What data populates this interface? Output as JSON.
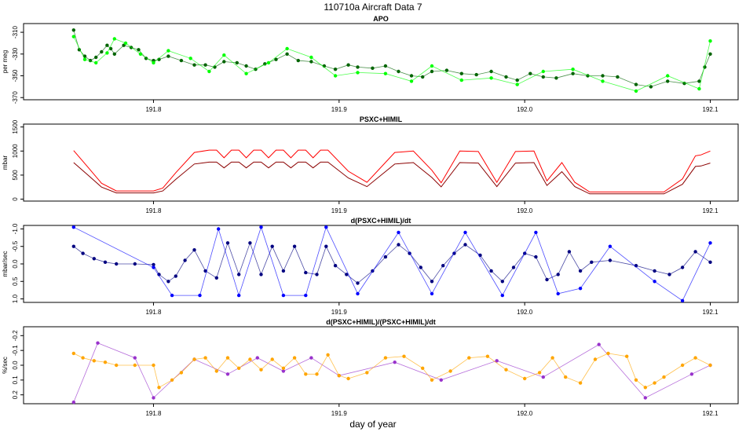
{
  "figure": {
    "title": "110710a   Aircraft Data 7",
    "xlabel": "day of year"
  },
  "colors": {
    "apo_dark": "#006400",
    "apo_light": "#00ff00",
    "pressure_upper": "#ff0000",
    "pressure_lower": "#8b0000",
    "deriv_dark": "#000080",
    "deriv_light": "#0000ff",
    "rel_primary": "#ffa500",
    "rel_secondary": "#9932cc"
  },
  "chart_data": [
    {
      "type": "scatter",
      "title": "APO",
      "ylabel": "per meg",
      "xlim": [
        191.73,
        192.115
      ],
      "ylim": [
        -372,
        -302
      ],
      "yticks": [
        -310,
        -330,
        -350,
        -370
      ],
      "ytick_labels": [
        "-310",
        "-330",
        "-350",
        "-370"
      ],
      "xticks": [
        191.8,
        191.9,
        192.0,
        192.1
      ],
      "xtick_labels": [
        "191.8",
        "191.9",
        "192.0",
        "192.1"
      ],
      "grid": false,
      "series": [
        {
          "color": "apo_dark",
          "x": [
            191.757,
            191.76,
            191.763,
            191.766,
            191.769,
            191.772,
            191.775,
            191.777,
            191.779,
            191.784,
            191.788,
            191.792,
            191.796,
            191.8,
            191.803,
            191.808,
            191.815,
            191.822,
            191.828,
            191.833,
            191.838,
            191.845,
            191.85,
            191.855,
            191.86,
            191.866,
            191.872,
            191.878,
            191.885,
            191.892,
            191.898,
            191.905,
            191.91,
            191.918,
            191.925,
            191.932,
            191.939,
            191.945,
            191.95,
            191.958,
            191.966,
            191.974,
            191.982,
            191.99,
            191.996,
            192.003,
            192.01,
            192.017,
            192.026,
            192.034,
            192.042,
            192.05,
            192.06,
            192.068,
            192.077,
            192.086,
            192.094,
            192.097,
            192.1
          ],
          "y": [
            -308,
            -326,
            -332,
            -336,
            -333,
            -328,
            -322,
            -325,
            -330,
            -322,
            -324,
            -326,
            -334,
            -336,
            -335,
            -332,
            -336,
            -340,
            -340,
            -342,
            -337,
            -338,
            -341,
            -344,
            -339,
            -335,
            -330,
            -336,
            -337,
            -341,
            -344,
            -340,
            -342,
            -343,
            -341,
            -346,
            -350,
            -351,
            -346,
            -345,
            -348,
            -349,
            -346,
            -351,
            -354,
            -348,
            -351,
            -352,
            -348,
            -350,
            -350,
            -351,
            -358,
            -360,
            -355,
            -357,
            -355,
            -342,
            -330
          ]
        },
        {
          "color": "apo_light",
          "x": [
            191.757,
            191.763,
            191.769,
            191.775,
            191.779,
            191.785,
            191.793,
            191.8,
            191.808,
            191.82,
            191.83,
            191.838,
            191.85,
            191.862,
            191.872,
            191.885,
            191.898,
            191.91,
            191.925,
            191.939,
            191.95,
            191.966,
            191.982,
            191.996,
            192.01,
            192.026,
            192.042,
            192.06,
            192.077,
            192.094,
            192.1
          ],
          "y": [
            -314,
            -335,
            -338,
            -329,
            -316,
            -320,
            -330,
            -338,
            -327,
            -334,
            -346,
            -331,
            -348,
            -338,
            -325,
            -333,
            -350,
            -347,
            -348,
            -355,
            -341,
            -354,
            -352,
            -358,
            -346,
            -344,
            -355,
            -364,
            -350,
            -362,
            -318
          ]
        }
      ]
    },
    {
      "type": "line",
      "title": "PSXC+HIMIL",
      "ylabel": "mbar",
      "xlim": [
        191.73,
        192.115
      ],
      "ylim": [
        -40,
        1560
      ],
      "yticks": [
        0,
        500,
        1000,
        1500
      ],
      "ytick_labels": [
        "0",
        "500",
        "1000",
        "1500"
      ],
      "xticks": [
        191.8,
        191.9,
        192.0,
        192.1
      ],
      "xtick_labels": [
        "191.8",
        "191.9",
        "192.0",
        "192.1"
      ],
      "grid": false,
      "series": [
        {
          "color": "pressure_upper",
          "x": [
            191.757,
            191.765,
            191.772,
            191.78,
            191.8,
            191.805,
            191.812,
            191.822,
            191.83,
            191.834,
            191.838,
            191.842,
            191.846,
            191.85,
            191.854,
            191.858,
            191.862,
            191.866,
            191.87,
            191.874,
            191.878,
            191.882,
            191.886,
            191.89,
            191.894,
            191.905,
            191.915,
            191.93,
            191.94,
            191.95,
            191.955,
            191.965,
            191.975,
            191.985,
            191.995,
            192.005,
            192.012,
            192.02,
            192.027,
            192.035,
            192.045,
            192.075,
            192.085,
            192.092,
            192.095,
            192.1
          ],
          "y": [
            1010,
            650,
            330,
            170,
            170,
            230,
            550,
            970,
            1020,
            1020,
            860,
            1020,
            1020,
            860,
            1020,
            1020,
            860,
            1020,
            1020,
            860,
            1020,
            1020,
            860,
            1020,
            1020,
            580,
            350,
            970,
            1000,
            600,
            340,
            1000,
            990,
            350,
            990,
            1000,
            380,
            760,
            350,
            150,
            150,
            150,
            420,
            900,
            920,
            1000
          ]
        },
        {
          "color": "pressure_lower",
          "x": [
            191.757,
            191.765,
            191.772,
            191.78,
            191.8,
            191.805,
            191.812,
            191.822,
            191.83,
            191.834,
            191.838,
            191.842,
            191.846,
            191.85,
            191.854,
            191.858,
            191.862,
            191.866,
            191.87,
            191.874,
            191.878,
            191.882,
            191.886,
            191.89,
            191.894,
            191.905,
            191.915,
            191.93,
            191.94,
            191.95,
            191.955,
            191.965,
            191.975,
            191.985,
            191.995,
            192.005,
            192.012,
            192.02,
            192.027,
            192.035,
            192.045,
            192.075,
            192.085,
            192.092,
            192.095,
            192.1
          ],
          "y": [
            760,
            490,
            250,
            130,
            130,
            170,
            410,
            730,
            770,
            770,
            650,
            770,
            770,
            650,
            770,
            770,
            650,
            770,
            770,
            650,
            770,
            770,
            650,
            770,
            770,
            440,
            260,
            730,
            760,
            450,
            255,
            760,
            750,
            260,
            750,
            760,
            285,
            570,
            260,
            110,
            110,
            110,
            310,
            680,
            690,
            750
          ]
        }
      ]
    },
    {
      "type": "scatter",
      "title": "d(PSXC+HIMIL)/dt",
      "ylabel": "mbar/sec",
      "xlim": [
        191.73,
        192.115
      ],
      "ylim": [
        1.1,
        -1.1
      ],
      "yticks": [
        -1.0,
        -0.5,
        0.0,
        0.5,
        1.0
      ],
      "ytick_labels": [
        "-1.0",
        "-0.5",
        "0.0",
        "0.5",
        "1.0"
      ],
      "xticks": [
        191.8,
        191.9,
        192.0,
        192.1
      ],
      "xtick_labels": [
        "191.8",
        "191.9",
        "192.0",
        "192.1"
      ],
      "grid": false,
      "series": [
        {
          "color": "deriv_dark",
          "x": [
            191.757,
            191.762,
            191.768,
            191.774,
            191.78,
            191.79,
            191.8,
            191.803,
            191.808,
            191.812,
            191.817,
            191.822,
            191.828,
            191.834,
            191.84,
            191.846,
            191.852,
            191.858,
            191.864,
            191.87,
            191.876,
            191.882,
            191.888,
            191.893,
            191.898,
            191.904,
            191.91,
            191.918,
            191.925,
            191.932,
            191.938,
            191.944,
            191.95,
            191.956,
            191.962,
            191.968,
            191.976,
            191.982,
            191.988,
            191.994,
            192.0,
            192.006,
            192.012,
            192.018,
            192.024,
            192.03,
            192.036,
            192.046,
            192.06,
            192.07,
            192.078,
            192.085,
            192.092,
            192.1
          ],
          "y": [
            -0.5,
            -0.3,
            -0.15,
            -0.05,
            0.0,
            0.0,
            0.02,
            0.3,
            0.5,
            0.35,
            -0.1,
            -0.4,
            0.2,
            0.4,
            -0.6,
            0.3,
            -0.6,
            0.3,
            -0.5,
            0.2,
            -0.5,
            0.25,
            0.3,
            -0.5,
            0.05,
            0.3,
            0.55,
            0.2,
            -0.2,
            -0.55,
            -0.3,
            0.1,
            0.5,
            0.05,
            -0.3,
            -0.55,
            -0.25,
            0.2,
            0.5,
            0.1,
            -0.3,
            -0.2,
            0.45,
            0.3,
            -0.35,
            0.2,
            -0.05,
            -0.1,
            0.05,
            0.2,
            0.3,
            0.1,
            -0.35,
            -0.05
          ]
        },
        {
          "color": "deriv_light",
          "x": [
            191.757,
            191.8,
            191.81,
            191.825,
            191.835,
            191.846,
            191.858,
            191.87,
            191.882,
            191.893,
            191.91,
            191.932,
            191.95,
            191.968,
            191.988,
            192.006,
            192.018,
            192.03,
            192.046,
            192.07,
            192.085,
            192.1
          ],
          "y": [
            -1.05,
            0.1,
            0.9,
            0.9,
            -1.0,
            0.9,
            -1.05,
            0.9,
            0.9,
            -1.05,
            0.85,
            -0.9,
            0.85,
            -0.9,
            0.9,
            -0.9,
            0.85,
            0.7,
            -0.5,
            0.5,
            1.05,
            -0.6
          ]
        }
      ]
    },
    {
      "type": "scatter",
      "title": "d(PSXC+HIMIL)/(PSXC+HIMIL)/dt",
      "ylabel": "%/sec",
      "xlim": [
        191.73,
        192.115
      ],
      "ylim": [
        0.26,
        -0.26
      ],
      "yticks": [
        -0.2,
        -0.1,
        0.0,
        0.1,
        0.2
      ],
      "ytick_labels": [
        "-0.2",
        "-0.1",
        "0.0",
        "0.1",
        "0.2"
      ],
      "xticks": [
        191.8,
        191.9,
        192.0,
        192.1
      ],
      "xtick_labels": [
        "191.8",
        "191.9",
        "192.0",
        "192.1"
      ],
      "grid": false,
      "series": [
        {
          "color": "rel_secondary",
          "x": [
            191.757,
            191.77,
            191.79,
            191.8,
            191.822,
            191.84,
            191.856,
            191.87,
            191.885,
            191.9,
            191.93,
            191.955,
            191.985,
            192.01,
            192.04,
            192.065,
            192.09,
            192.1
          ],
          "y": [
            0.25,
            -0.15,
            -0.05,
            0.22,
            -0.04,
            0.06,
            -0.05,
            0.04,
            -0.05,
            0.07,
            -0.02,
            0.1,
            -0.03,
            0.08,
            -0.14,
            0.22,
            0.06,
            0.0
          ]
        },
        {
          "color": "rel_primary",
          "x": [
            191.757,
            191.762,
            191.768,
            191.774,
            191.78,
            191.79,
            191.8,
            191.803,
            191.81,
            191.815,
            191.822,
            191.828,
            191.834,
            191.84,
            191.846,
            191.852,
            191.858,
            191.864,
            191.87,
            191.876,
            191.882,
            191.888,
            191.894,
            191.9,
            191.905,
            191.915,
            191.925,
            191.935,
            191.945,
            191.95,
            191.96,
            191.97,
            191.98,
            191.99,
            192.0,
            192.008,
            192.015,
            192.022,
            192.03,
            192.038,
            192.045,
            192.055,
            192.06,
            192.065,
            192.07,
            192.075,
            192.085,
            192.092,
            192.1
          ],
          "y": [
            -0.08,
            -0.05,
            -0.03,
            -0.02,
            0.0,
            0.0,
            0.0,
            0.15,
            0.1,
            0.05,
            -0.04,
            -0.05,
            0.04,
            -0.05,
            0.02,
            -0.04,
            0.03,
            -0.04,
            0.02,
            -0.05,
            0.06,
            0.06,
            -0.07,
            0.07,
            0.09,
            0.05,
            -0.05,
            -0.06,
            0.02,
            0.1,
            0.04,
            -0.05,
            -0.06,
            0.03,
            0.09,
            0.05,
            -0.05,
            0.08,
            0.12,
            -0.04,
            -0.08,
            -0.06,
            0.1,
            0.15,
            0.12,
            0.08,
            0.0,
            -0.05,
            0.0
          ]
        }
      ]
    }
  ]
}
